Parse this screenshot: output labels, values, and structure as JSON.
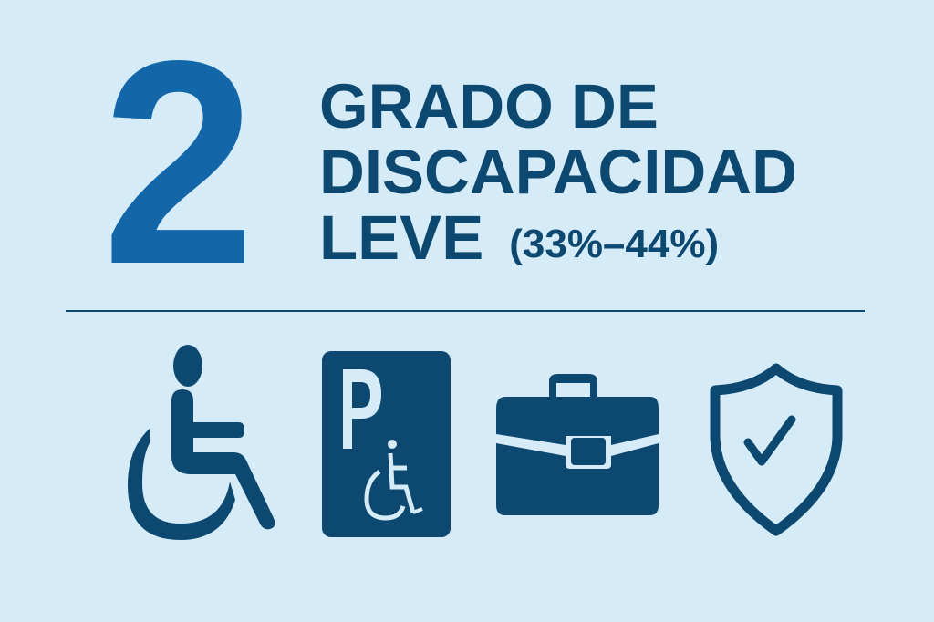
{
  "number": "2",
  "title": {
    "line1": "GRADO DE",
    "line2": "DISCAPACIDAD",
    "line3": "LEVE",
    "range": "(33%–44%)"
  },
  "colors": {
    "background": "#d5ecf8",
    "number": "#1367a8",
    "text": "#0d4870"
  },
  "icons": [
    "wheelchair-icon",
    "disabled-parking-icon",
    "briefcase-icon",
    "shield-check-icon"
  ]
}
